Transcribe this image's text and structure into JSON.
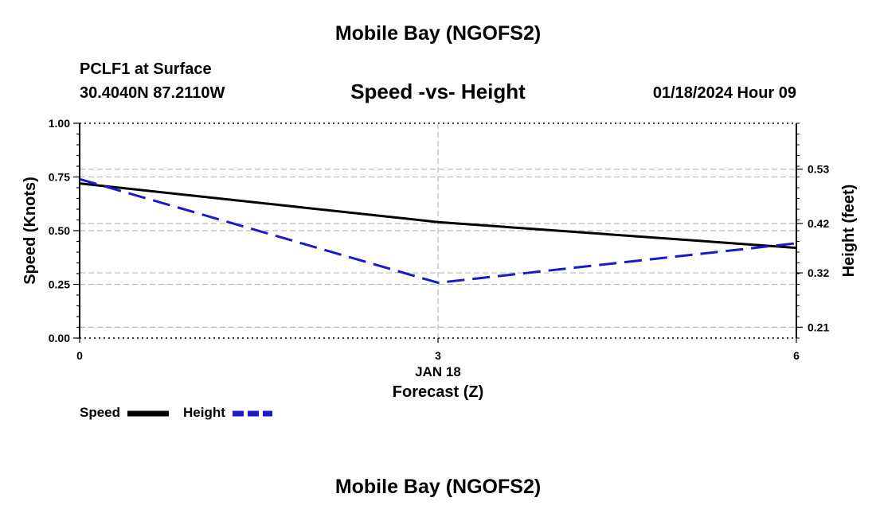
{
  "header": {
    "title": "Mobile Bay (NGOFS2)",
    "station": "PCLF1 at Surface",
    "coords": "30.4040N  87.2110W",
    "datetime": "01/18/2024 Hour 09"
  },
  "footer": {
    "title": "Mobile Bay (NGOFS2)"
  },
  "chart_data": {
    "type": "line",
    "title": "Speed -vs- Height",
    "xlabel": "Forecast (Z)",
    "x_date_label": "JAN 18",
    "ylabel": "Speed (Knots)",
    "y2label": "Height (feet)",
    "x": [
      0,
      3,
      6
    ],
    "xlim": [
      0,
      6
    ],
    "xticks": [
      "0",
      "3",
      "6"
    ],
    "ylim": [
      0,
      1
    ],
    "yticks": [
      "0.00",
      "0.25",
      "0.50",
      "0.75",
      "1.00"
    ],
    "y2lim": [
      0.188,
      0.623
    ],
    "y2ticks": [
      "0.21",
      "0.32",
      "0.42",
      "0.53"
    ],
    "y2tick_values": [
      0.21,
      0.32,
      0.42,
      0.53
    ],
    "legend_position": "bottom-left",
    "grid": true,
    "series": [
      {
        "name": "Speed",
        "axis": "left",
        "values": [
          0.72,
          0.54,
          0.42
        ],
        "color": "#000000",
        "style": "solid"
      },
      {
        "name": "Height",
        "axis": "right",
        "values": [
          0.51,
          0.3,
          0.38
        ],
        "color": "#1a1acc",
        "style": "dashed"
      }
    ]
  }
}
